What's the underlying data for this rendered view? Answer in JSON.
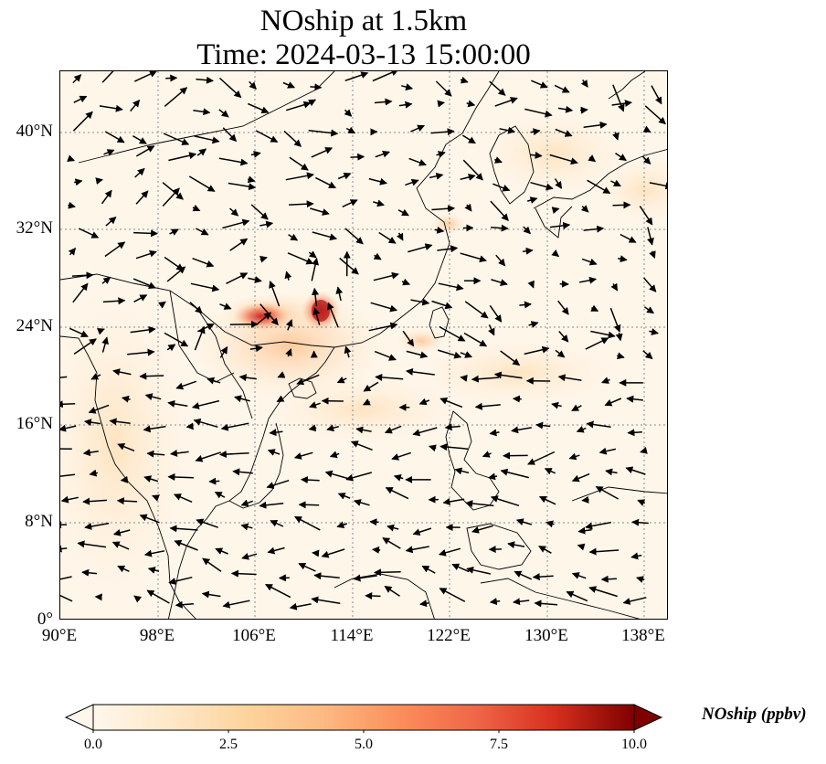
{
  "title": {
    "line1": "NOship at 1.5km",
    "line2": "Time: 2024-03-13 15:00:00"
  },
  "map": {
    "lon_range": [
      90,
      140
    ],
    "lat_range": [
      0,
      45
    ],
    "lon_ticks": [
      "90°E",
      "98°E",
      "106°E",
      "114°E",
      "122°E",
      "130°E",
      "138°E"
    ],
    "lat_ticks": [
      "0°",
      "8°N",
      "16°N",
      "24°N",
      "32°N",
      "40°N"
    ],
    "gridlines": true,
    "colors": {
      "background": "#fff6ea",
      "coastline": "#000000",
      "gridline": "#8c8c8c",
      "hotspot": "#d7301f",
      "arrow": "#000000"
    }
  },
  "colorbar": {
    "label": "NOship (ppbv)",
    "min": 0,
    "max": 10,
    "ticks": [
      "0.0",
      "2.5",
      "5.0",
      "7.5",
      "10.0"
    ],
    "colormap": "OrRd",
    "extend": "both"
  }
}
